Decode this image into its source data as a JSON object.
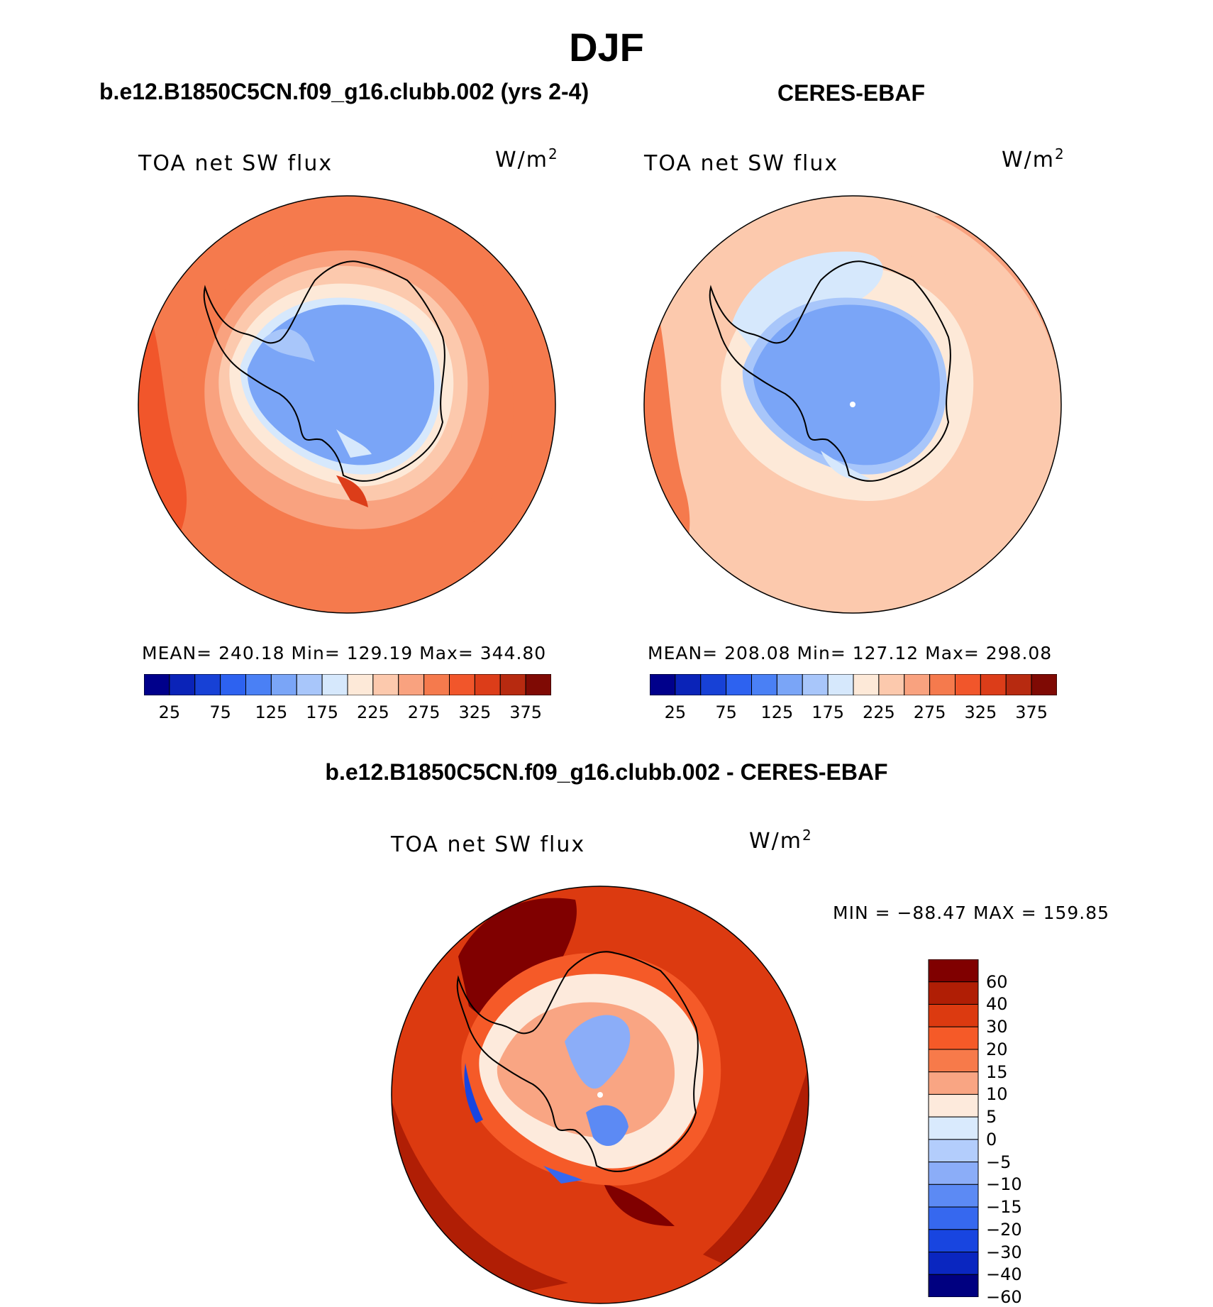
{
  "main_title": "DJF",
  "panels": [
    {
      "title": "b.e12.B1850C5CN.f09_g16.clubb.002 (yrs 2-4)",
      "variable": "TOA net SW flux",
      "units": "W/m",
      "units_sup": "2",
      "stats": "MEAN= 240.18   Min= 129.19   Max= 344.80"
    },
    {
      "title": "CERES-EBAF",
      "variable": "TOA net SW flux",
      "units": "W/m",
      "units_sup": "2",
      "stats": "MEAN= 208.08   Min= 127.12   Max= 298.08"
    },
    {
      "title": "b.e12.B1850C5CN.f09_g16.clubb.002 - CERES-EBAF",
      "variable": "TOA net SW flux",
      "units": "W/m",
      "units_sup": "2",
      "stats": "MIN = −88.47 MAX = 159.85"
    }
  ],
  "abs_colorbar": {
    "labels": [
      "25",
      "75",
      "125",
      "175",
      "225",
      "275",
      "325",
      "375"
    ],
    "colors": [
      "#00008b",
      "#0a23b8",
      "#1741d6",
      "#2d62f0",
      "#4a80f5",
      "#7aa5f7",
      "#a8c6fa",
      "#d6e8fc",
      "#fde9d8",
      "#fcc9ad",
      "#f9a27f",
      "#f57a4d",
      "#f1562b",
      "#dc3d19",
      "#b72a10",
      "#7f0a04"
    ]
  },
  "diff_colorbar": {
    "labels": [
      "60",
      "40",
      "30",
      "20",
      "15",
      "10",
      "5",
      "0",
      "−5",
      "−10",
      "−15",
      "−20",
      "−30",
      "−40",
      "−60"
    ],
    "colors": [
      "#800000",
      "#b01e05",
      "#dc3a10",
      "#f55a28",
      "#f77a4a",
      "#f9a583",
      "#fdeadc",
      "#d9eafd",
      "#b3cdfc",
      "#8badf8",
      "#5c8af4",
      "#3668ef",
      "#1845e0",
      "#0a26c0",
      "#000080"
    ]
  }
}
